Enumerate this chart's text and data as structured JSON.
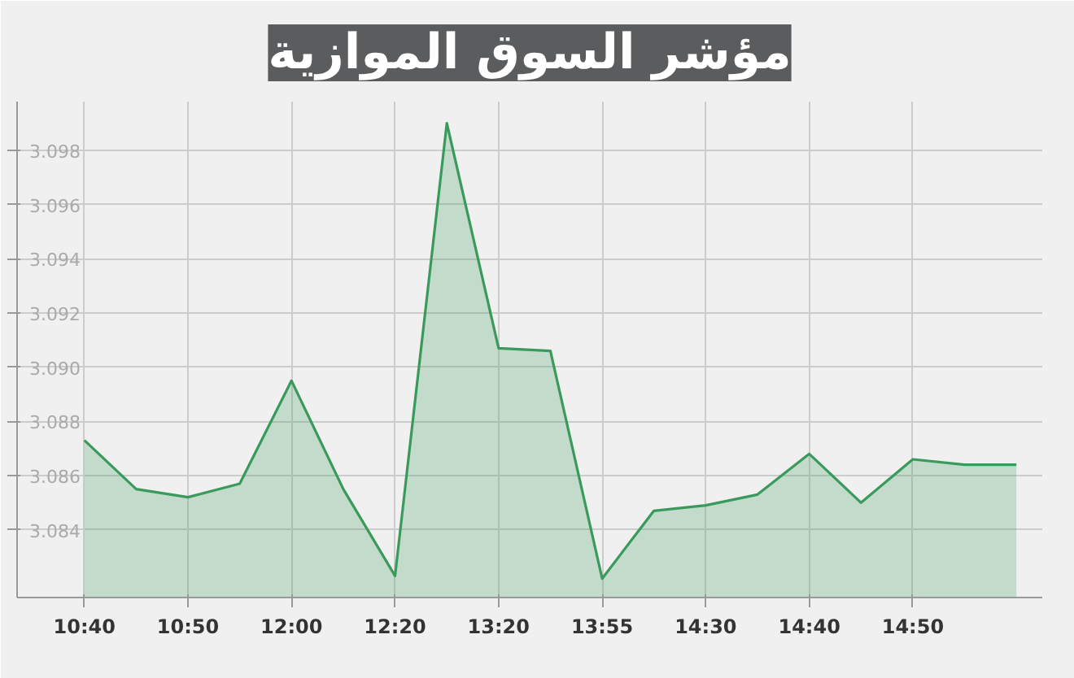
{
  "chart_data": {
    "type": "area",
    "title": "مؤشر السوق الموازية",
    "categories": [
      "10:40",
      null,
      "10:50",
      null,
      "12:00",
      null,
      "12:20",
      null,
      "13:20",
      null,
      "13:55",
      null,
      "14:30",
      null,
      "14:40",
      null,
      "14:50",
      null,
      null
    ],
    "series": [
      {
        "color": "#3a9a5c",
        "values": [
          3.0873,
          3.0855,
          3.0852,
          3.0857,
          3.0895,
          3.0855,
          3.0823,
          3.099,
          3.0907,
          3.0906,
          3.0822,
          3.0847,
          3.0849,
          3.0853,
          3.0868,
          3.085,
          3.0866,
          3.0864,
          3.0864
        ]
      }
    ],
    "ylim": [
      3.0815,
      3.0998
    ],
    "yticks": [
      3.084,
      3.086,
      3.088,
      {
        "value": 3.09,
        "label": "3.090"
      },
      3.092,
      3.094,
      3.096,
      3.098
    ],
    "grid": true
  }
}
